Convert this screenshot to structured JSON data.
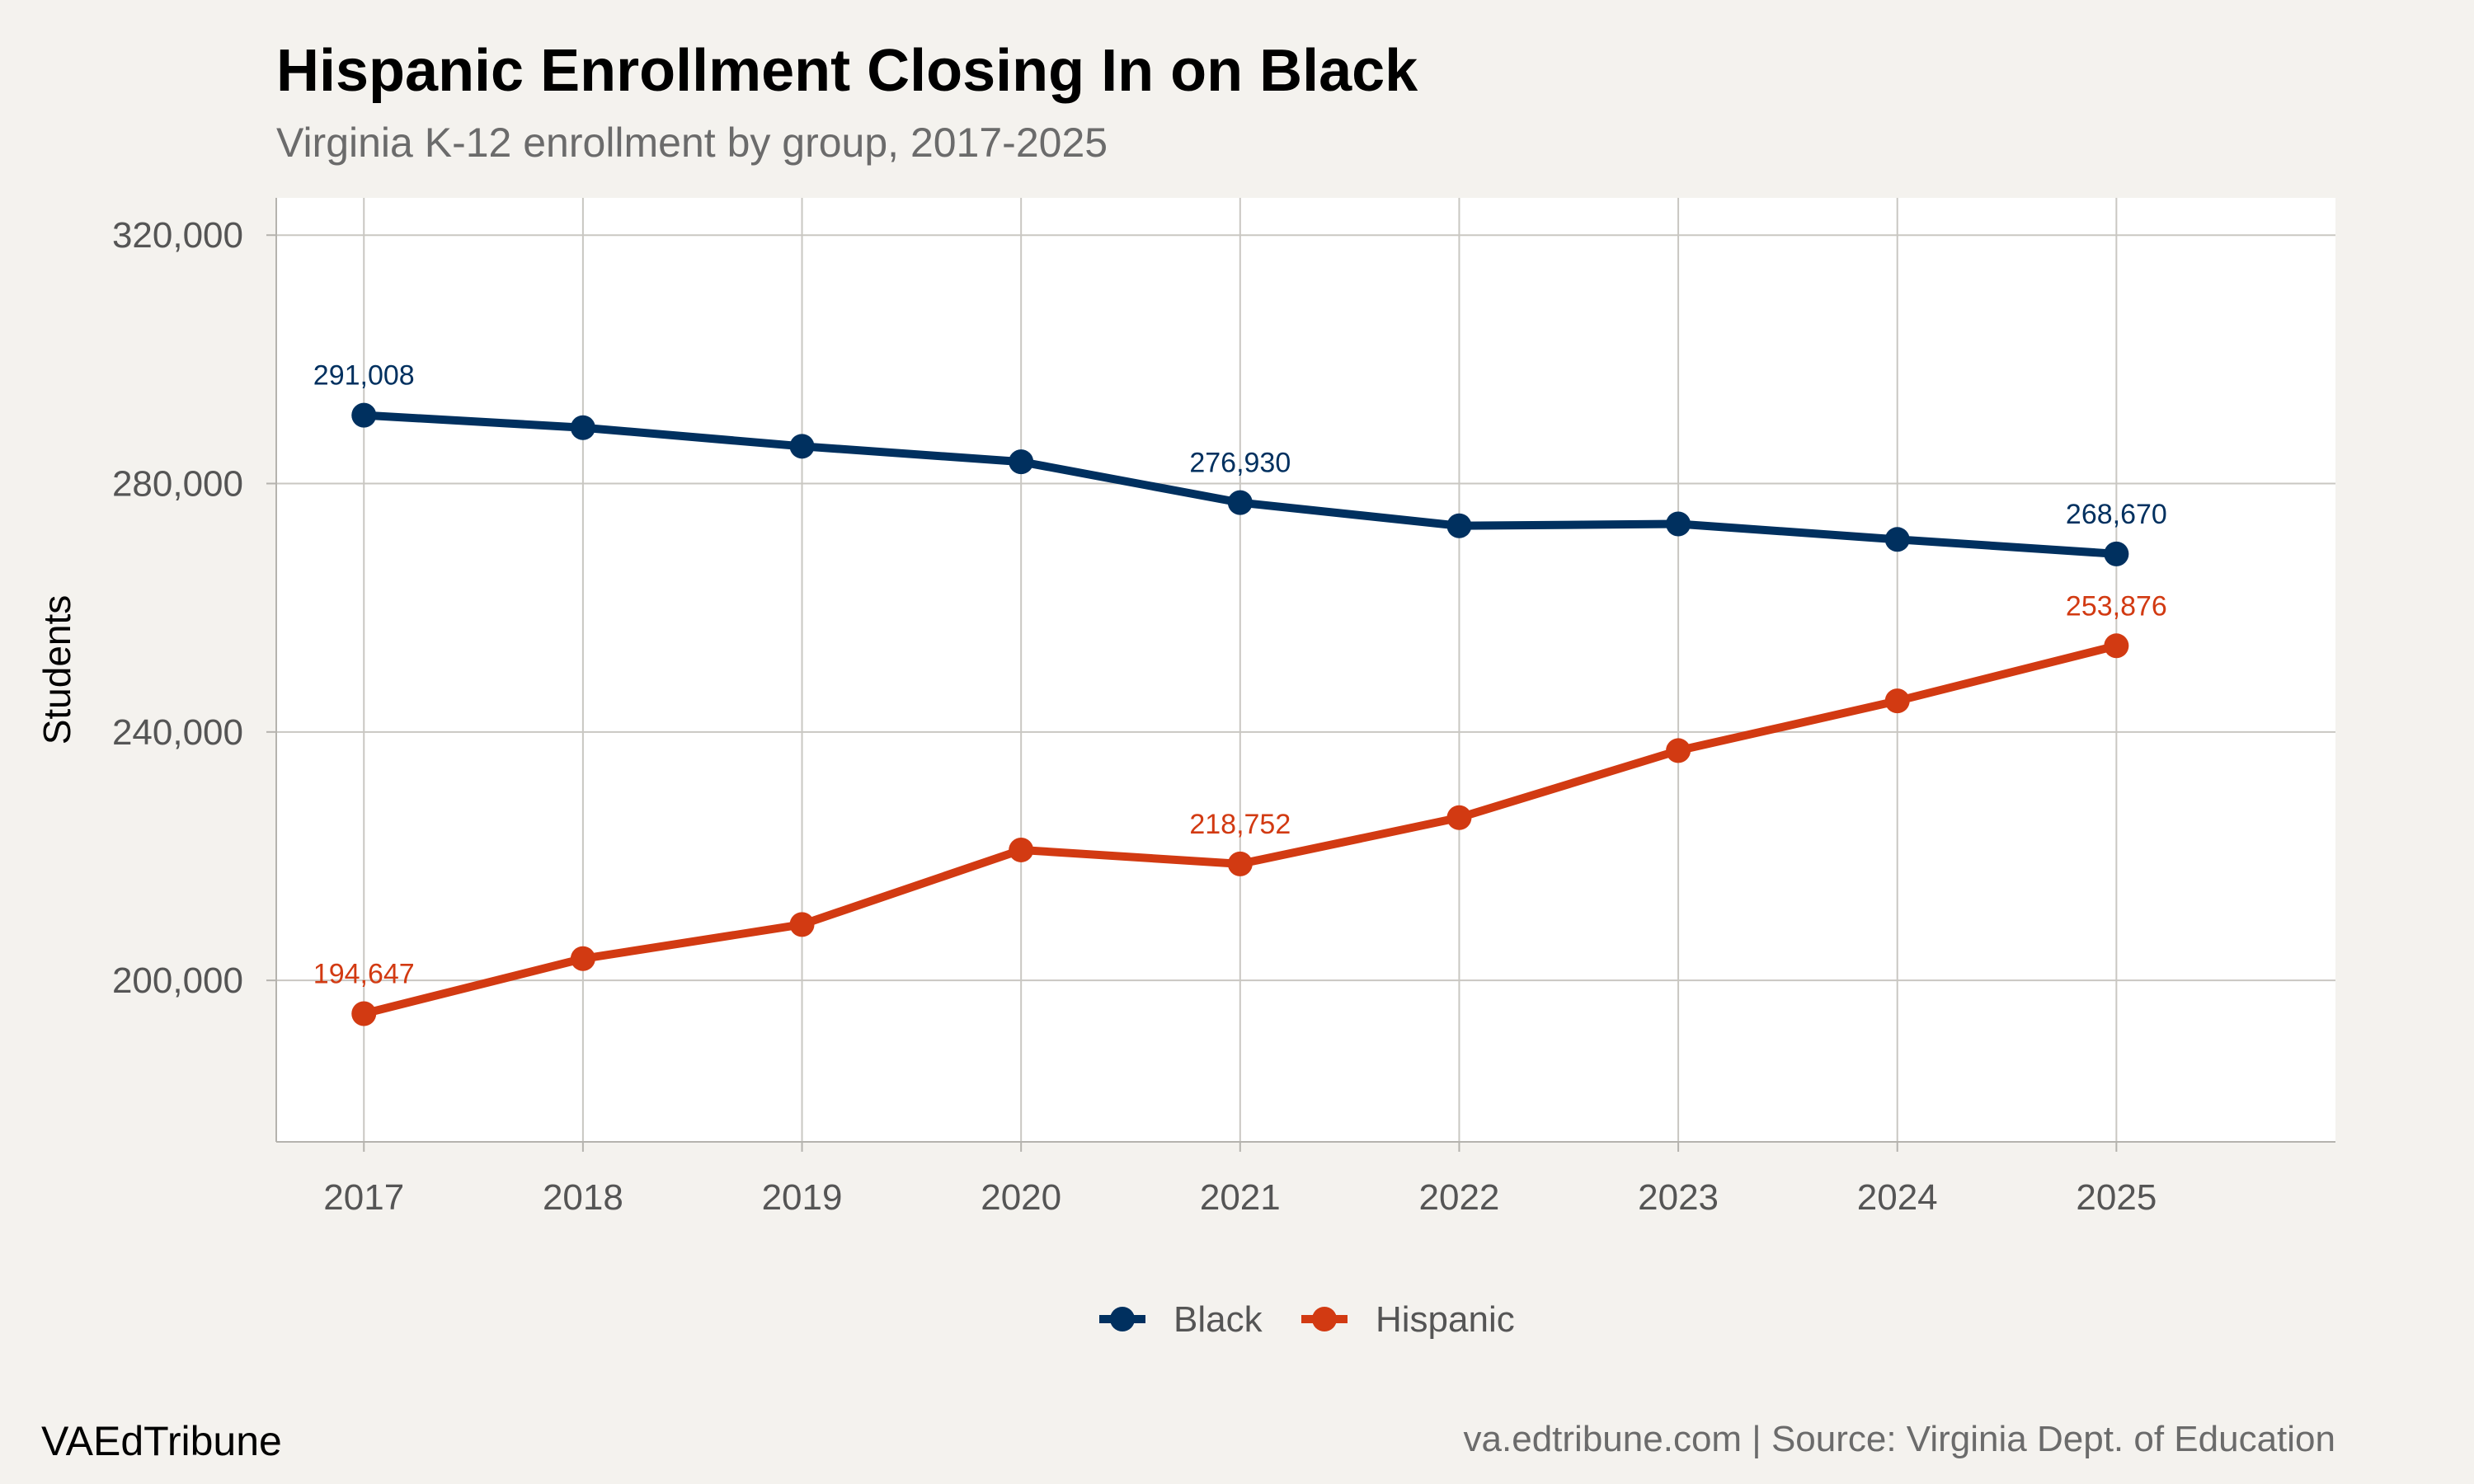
{
  "chart_data": {
    "type": "line",
    "title": "Hispanic Enrollment Closing In on Black",
    "subtitle": "Virginia K-12 enrollment by group, 2017-2025",
    "xlabel": "",
    "ylabel": "Students",
    "x": [
      2017,
      2018,
      2019,
      2020,
      2021,
      2022,
      2023,
      2024,
      2025
    ],
    "xlim": [
      2016.6,
      2026.0
    ],
    "ylim": [
      174000,
      326000
    ],
    "y_ticks": [
      200000,
      240000,
      280000,
      320000
    ],
    "y_tick_labels": [
      "200,000",
      "240,000",
      "280,000",
      "320,000"
    ],
    "grid": true,
    "legend_position": "bottom",
    "series": [
      {
        "name": "Black",
        "color": "#00305f",
        "values": [
          291008,
          289000,
          286000,
          283500,
          276930,
          273200,
          273500,
          271000,
          268670
        ],
        "labels": [
          {
            "index": 0,
            "text": "291,008"
          },
          {
            "index": 4,
            "text": "276,930"
          },
          {
            "index": 8,
            "text": "268,670"
          }
        ]
      },
      {
        "name": "Hispanic",
        "color": "#d23a12",
        "values": [
          194647,
          203500,
          209000,
          221000,
          218752,
          226200,
          237000,
          245000,
          253876
        ],
        "labels": [
          {
            "index": 0,
            "text": "194,647"
          },
          {
            "index": 4,
            "text": "218,752"
          },
          {
            "index": 8,
            "text": "253,876"
          }
        ]
      }
    ]
  },
  "footer": {
    "brand": "VAEdTribune",
    "source": "va.edtribune.com | Source: Virginia Dept. of Education"
  }
}
